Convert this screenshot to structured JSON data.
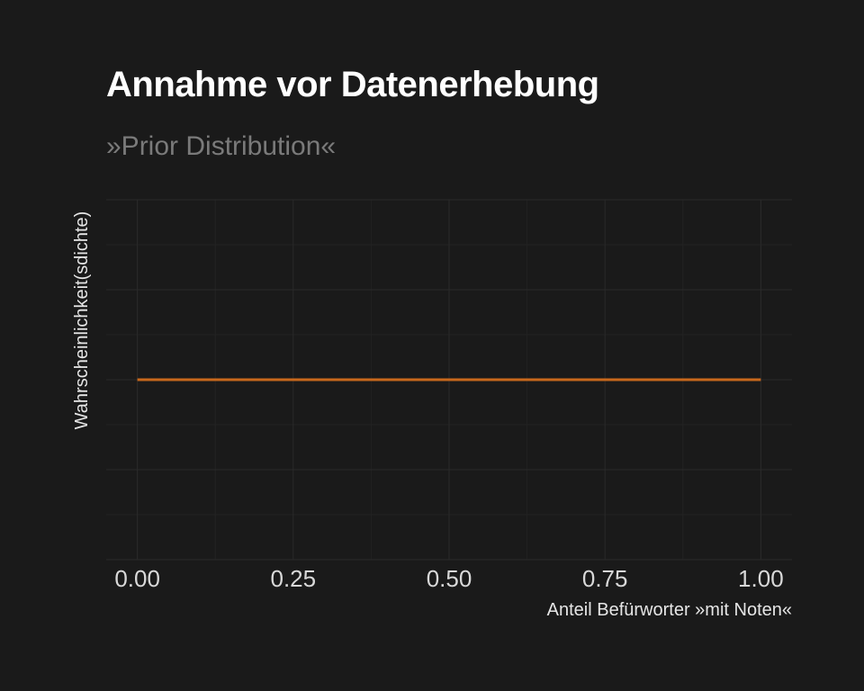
{
  "title": "Annahme vor Datenerhebung",
  "subtitle": "»Prior Distribution«",
  "colors": {
    "background": "#1a1a1a",
    "grid_major": "#2a2a2a",
    "grid_minor": "#222222",
    "line": "#c8681c",
    "title": "#ffffff",
    "subtitle": "#7a7a7a"
  },
  "chart_data": {
    "type": "line",
    "title": "Annahme vor Datenerhebung",
    "subtitle": "»Prior Distribution«",
    "xlabel": "Anteil Befürworter »mit Noten«",
    "ylabel": "Wahrscheinlichkeit(sdichte)",
    "xlim": [
      -0.05,
      1.05
    ],
    "ylim": [
      0,
      2
    ],
    "x_ticks": [
      0,
      0.25,
      0.5,
      0.75,
      1
    ],
    "x_tick_labels": [
      "0.00",
      "0.25",
      "0.50",
      "0.75",
      "1.00"
    ],
    "y_ticks_shown": false,
    "grid": true,
    "series": [
      {
        "x": [
          0,
          1
        ],
        "y": [
          1,
          1
        ]
      }
    ]
  }
}
